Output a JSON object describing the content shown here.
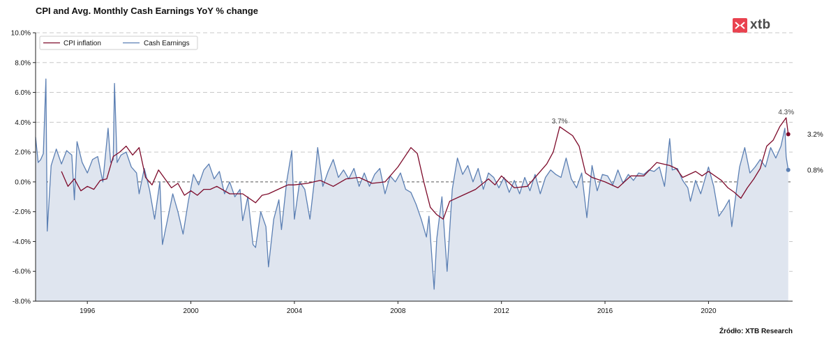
{
  "title": "CPI and Avg. Monthly Cash Earnings YoY % change",
  "source": "Źródło: XTB Research",
  "logo": {
    "text": "xtb",
    "color": "#e9424f"
  },
  "colors": {
    "cpi": "#7d0a2a",
    "earnings": "#5b7fb3",
    "earnings_fill": "#dfe5ef",
    "grid": "#c8c8c8",
    "zero": "#777777"
  },
  "chart_data": {
    "type": "line",
    "title": "CPI and Avg. Monthly Cash Earnings YoY % change",
    "xlabel": "",
    "ylabel": "",
    "xlim": [
      1994.0,
      2023.25
    ],
    "ylim": [
      -8,
      10
    ],
    "yticks": [
      "-8.0%",
      "-6.0%",
      "-4.0%",
      "-2.0%",
      "0.0%",
      "2.0%",
      "4.0%",
      "6.0%",
      "8.0%",
      "10.0%"
    ],
    "xticks": [
      "1996",
      "2000",
      "2004",
      "2008",
      "2012",
      "2016",
      "2020"
    ],
    "grid": "horizontal dashed",
    "legend": "top-left",
    "series": [
      {
        "name": "CPI inflation",
        "color": "#7d0a2a",
        "points": [
          [
            1995.0,
            0.7
          ],
          [
            1995.25,
            -0.3
          ],
          [
            1995.5,
            0.2
          ],
          [
            1995.75,
            -0.6
          ],
          [
            1996.0,
            -0.3
          ],
          [
            1996.25,
            -0.5
          ],
          [
            1996.5,
            0.1
          ],
          [
            1996.75,
            0.2
          ],
          [
            1997.0,
            1.7
          ],
          [
            1997.25,
            2.0
          ],
          [
            1997.5,
            2.4
          ],
          [
            1997.75,
            1.8
          ],
          [
            1998.0,
            2.3
          ],
          [
            1998.25,
            0.3
          ],
          [
            1998.5,
            -0.2
          ],
          [
            1998.75,
            0.8
          ],
          [
            1999.0,
            0.2
          ],
          [
            1999.25,
            -0.4
          ],
          [
            1999.5,
            -0.1
          ],
          [
            1999.75,
            -0.9
          ],
          [
            2000.0,
            -0.6
          ],
          [
            2000.25,
            -0.9
          ],
          [
            2000.5,
            -0.5
          ],
          [
            2000.75,
            -0.5
          ],
          [
            2001.0,
            -0.3
          ],
          [
            2001.5,
            -0.8
          ],
          [
            2002.0,
            -0.8
          ],
          [
            2002.5,
            -1.4
          ],
          [
            2002.75,
            -0.9
          ],
          [
            2003.0,
            -0.8
          ],
          [
            2003.5,
            -0.4
          ],
          [
            2003.75,
            -0.2
          ],
          [
            2004.0,
            -0.2
          ],
          [
            2004.5,
            -0.1
          ],
          [
            2005.0,
            0.1
          ],
          [
            2005.5,
            -0.3
          ],
          [
            2006.0,
            0.2
          ],
          [
            2006.5,
            0.3
          ],
          [
            2007.0,
            -0.1
          ],
          [
            2007.5,
            0.0
          ],
          [
            2008.0,
            1.0
          ],
          [
            2008.5,
            2.3
          ],
          [
            2008.75,
            1.9
          ],
          [
            2009.0,
            0.0
          ],
          [
            2009.25,
            -1.7
          ],
          [
            2009.5,
            -2.2
          ],
          [
            2009.75,
            -2.5
          ],
          [
            2010.0,
            -1.3
          ],
          [
            2010.5,
            -0.9
          ],
          [
            2011.0,
            -0.5
          ],
          [
            2011.5,
            0.2
          ],
          [
            2011.75,
            -0.2
          ],
          [
            2012.0,
            0.4
          ],
          [
            2012.5,
            -0.4
          ],
          [
            2013.0,
            -0.3
          ],
          [
            2013.5,
            0.7
          ],
          [
            2013.75,
            1.2
          ],
          [
            2014.0,
            2.0
          ],
          [
            2014.25,
            3.7
          ],
          [
            2014.5,
            3.4
          ],
          [
            2014.75,
            3.1
          ],
          [
            2015.0,
            2.4
          ],
          [
            2015.25,
            0.6
          ],
          [
            2015.5,
            0.3
          ],
          [
            2016.0,
            0.0
          ],
          [
            2016.5,
            -0.4
          ],
          [
            2017.0,
            0.4
          ],
          [
            2017.5,
            0.4
          ],
          [
            2018.0,
            1.3
          ],
          [
            2018.5,
            1.1
          ],
          [
            2018.75,
            0.9
          ],
          [
            2019.0,
            0.3
          ],
          [
            2019.5,
            0.7
          ],
          [
            2019.75,
            0.4
          ],
          [
            2020.0,
            0.7
          ],
          [
            2020.5,
            0.1
          ],
          [
            2020.75,
            -0.4
          ],
          [
            2021.0,
            -0.7
          ],
          [
            2021.25,
            -1.1
          ],
          [
            2021.5,
            -0.4
          ],
          [
            2021.75,
            0.2
          ],
          [
            2022.0,
            0.9
          ],
          [
            2022.25,
            2.4
          ],
          [
            2022.5,
            2.8
          ],
          [
            2022.75,
            3.7
          ],
          [
            2023.0,
            4.3
          ],
          [
            2023.08,
            3.2
          ]
        ]
      },
      {
        "name": "Cash Earnings",
        "color": "#5b7fb3",
        "points": [
          [
            1994.0,
            3.0
          ],
          [
            1994.1,
            1.3
          ],
          [
            1994.2,
            1.5
          ],
          [
            1994.3,
            1.9
          ],
          [
            1994.4,
            6.9
          ],
          [
            1994.45,
            -3.3
          ],
          [
            1994.6,
            1.1
          ],
          [
            1994.8,
            2.2
          ],
          [
            1995.0,
            1.2
          ],
          [
            1995.2,
            2.1
          ],
          [
            1995.4,
            1.8
          ],
          [
            1995.5,
            -1.2
          ],
          [
            1995.6,
            2.7
          ],
          [
            1995.8,
            1.3
          ],
          [
            1996.0,
            0.6
          ],
          [
            1996.2,
            1.5
          ],
          [
            1996.4,
            1.7
          ],
          [
            1996.6,
            0.0
          ],
          [
            1996.8,
            3.6
          ],
          [
            1996.9,
            1.3
          ],
          [
            1997.0,
            1.5
          ],
          [
            1997.05,
            6.6
          ],
          [
            1997.15,
            1.3
          ],
          [
            1997.3,
            1.8
          ],
          [
            1997.5,
            2.0
          ],
          [
            1997.7,
            1.0
          ],
          [
            1997.9,
            0.6
          ],
          [
            1998.0,
            -0.8
          ],
          [
            1998.2,
            0.9
          ],
          [
            1998.4,
            -0.5
          ],
          [
            1998.6,
            -2.5
          ],
          [
            1998.8,
            0.0
          ],
          [
            1998.9,
            -4.2
          ],
          [
            1999.1,
            -2.5
          ],
          [
            1999.3,
            -0.8
          ],
          [
            1999.5,
            -2.0
          ],
          [
            1999.7,
            -3.5
          ],
          [
            1999.9,
            -1.3
          ],
          [
            2000.1,
            0.5
          ],
          [
            2000.3,
            -0.2
          ],
          [
            2000.5,
            0.8
          ],
          [
            2000.7,
            1.2
          ],
          [
            2000.9,
            0.2
          ],
          [
            2001.1,
            0.7
          ],
          [
            2001.3,
            -0.8
          ],
          [
            2001.5,
            0.0
          ],
          [
            2001.7,
            -1.0
          ],
          [
            2001.9,
            -0.5
          ],
          [
            2002.0,
            -2.6
          ],
          [
            2002.2,
            -1.0
          ],
          [
            2002.4,
            -4.2
          ],
          [
            2002.5,
            -4.4
          ],
          [
            2002.7,
            -2.0
          ],
          [
            2002.9,
            -3.0
          ],
          [
            2003.0,
            -5.7
          ],
          [
            2003.2,
            -2.5
          ],
          [
            2003.4,
            -1.2
          ],
          [
            2003.5,
            -3.2
          ],
          [
            2003.7,
            0.0
          ],
          [
            2003.9,
            2.1
          ],
          [
            2004.0,
            -2.5
          ],
          [
            2004.2,
            0.0
          ],
          [
            2004.4,
            -0.5
          ],
          [
            2004.6,
            -2.5
          ],
          [
            2004.8,
            0.5
          ],
          [
            2004.9,
            2.3
          ],
          [
            2005.1,
            -0.3
          ],
          [
            2005.3,
            0.7
          ],
          [
            2005.5,
            1.5
          ],
          [
            2005.7,
            0.3
          ],
          [
            2005.9,
            0.8
          ],
          [
            2006.1,
            0.2
          ],
          [
            2006.3,
            0.9
          ],
          [
            2006.5,
            -0.3
          ],
          [
            2006.7,
            0.6
          ],
          [
            2006.9,
            -0.3
          ],
          [
            2007.1,
            0.5
          ],
          [
            2007.3,
            0.9
          ],
          [
            2007.5,
            -0.8
          ],
          [
            2007.7,
            0.4
          ],
          [
            2007.9,
            0.0
          ],
          [
            2008.1,
            0.6
          ],
          [
            2008.3,
            -0.5
          ],
          [
            2008.5,
            -0.7
          ],
          [
            2008.7,
            -1.5
          ],
          [
            2008.9,
            -2.5
          ],
          [
            2009.1,
            -3.7
          ],
          [
            2009.2,
            -2.3
          ],
          [
            2009.4,
            -7.2
          ],
          [
            2009.5,
            -3.8
          ],
          [
            2009.7,
            -1.0
          ],
          [
            2009.9,
            -6.0
          ],
          [
            2010.1,
            -0.5
          ],
          [
            2010.3,
            1.6
          ],
          [
            2010.5,
            0.5
          ],
          [
            2010.7,
            1.1
          ],
          [
            2010.9,
            0.0
          ],
          [
            2011.1,
            0.9
          ],
          [
            2011.3,
            -0.5
          ],
          [
            2011.5,
            0.6
          ],
          [
            2011.7,
            0.3
          ],
          [
            2011.9,
            -0.4
          ],
          [
            2012.1,
            0.3
          ],
          [
            2012.3,
            -0.7
          ],
          [
            2012.5,
            0.1
          ],
          [
            2012.7,
            -0.8
          ],
          [
            2012.9,
            0.3
          ],
          [
            2013.1,
            -0.6
          ],
          [
            2013.3,
            0.5
          ],
          [
            2013.5,
            -0.8
          ],
          [
            2013.7,
            0.3
          ],
          [
            2013.9,
            0.8
          ],
          [
            2014.1,
            0.5
          ],
          [
            2014.3,
            0.3
          ],
          [
            2014.5,
            1.6
          ],
          [
            2014.7,
            0.2
          ],
          [
            2014.9,
            -0.4
          ],
          [
            2015.1,
            0.6
          ],
          [
            2015.3,
            -2.4
          ],
          [
            2015.5,
            1.1
          ],
          [
            2015.7,
            -0.6
          ],
          [
            2015.9,
            0.5
          ],
          [
            2016.1,
            0.4
          ],
          [
            2016.3,
            -0.2
          ],
          [
            2016.5,
            0.8
          ],
          [
            2016.7,
            -0.1
          ],
          [
            2016.9,
            0.5
          ],
          [
            2017.1,
            0.1
          ],
          [
            2017.3,
            0.6
          ],
          [
            2017.5,
            0.5
          ],
          [
            2017.7,
            0.8
          ],
          [
            2017.9,
            0.7
          ],
          [
            2018.1,
            1.0
          ],
          [
            2018.3,
            -0.3
          ],
          [
            2018.5,
            2.9
          ],
          [
            2018.6,
            0.8
          ],
          [
            2018.8,
            0.9
          ],
          [
            2019.0,
            0.1
          ],
          [
            2019.2,
            -0.4
          ],
          [
            2019.3,
            -1.3
          ],
          [
            2019.5,
            0.1
          ],
          [
            2019.7,
            -0.8
          ],
          [
            2019.9,
            0.4
          ],
          [
            2020.0,
            1.0
          ],
          [
            2020.2,
            -0.3
          ],
          [
            2020.4,
            -2.3
          ],
          [
            2020.6,
            -1.8
          ],
          [
            2020.8,
            -1.2
          ],
          [
            2020.9,
            -3.0
          ],
          [
            2021.1,
            -0.3
          ],
          [
            2021.2,
            1.0
          ],
          [
            2021.4,
            2.3
          ],
          [
            2021.6,
            0.6
          ],
          [
            2021.8,
            1.0
          ],
          [
            2022.0,
            1.5
          ],
          [
            2022.2,
            1.0
          ],
          [
            2022.4,
            2.3
          ],
          [
            2022.6,
            1.6
          ],
          [
            2022.8,
            2.4
          ],
          [
            2022.95,
            3.6
          ],
          [
            2023.0,
            1.7
          ],
          [
            2023.08,
            0.8
          ]
        ]
      }
    ],
    "annotations": [
      {
        "text": "3.7%",
        "x": 2014.25,
        "y": 3.7
      },
      {
        "text": "4.3%",
        "x": 2023.0,
        "y": 4.3
      }
    ],
    "end_labels": [
      {
        "text": "3.2%",
        "series": "CPI inflation",
        "x": 2023.08,
        "y": 3.2
      },
      {
        "text": "0.8%",
        "series": "Cash Earnings",
        "x": 2023.08,
        "y": 0.8
      }
    ]
  }
}
